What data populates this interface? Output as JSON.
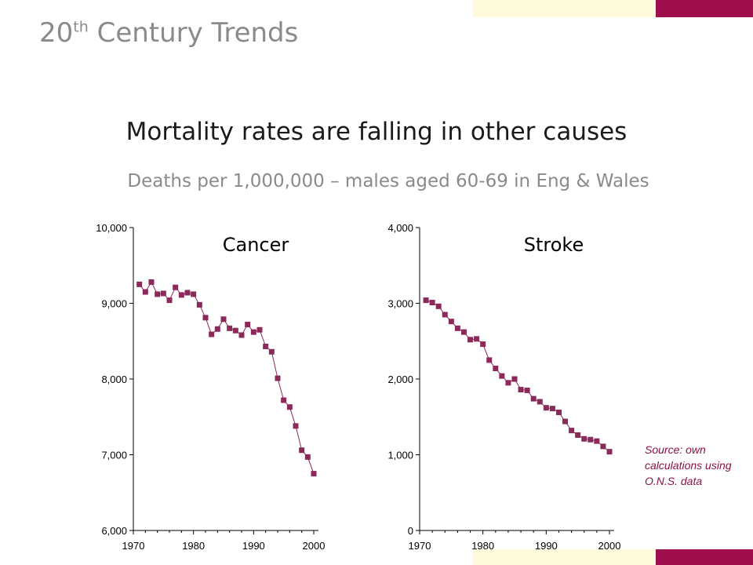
{
  "slide": {
    "title_main": "20",
    "title_sup": "th",
    "title_rest": " Century Trends",
    "headline": "Mortality rates are falling in other causes",
    "subtitle": "Deaths per 1,000,000 – males aged 60-69 in Eng & Wales",
    "source": "Source: own calculations using O.N.S. data"
  },
  "colors": {
    "accent_maroon": "#A00F4D",
    "band_cream": "#FFFADC",
    "marker": "#8B2A5A",
    "title_grey": "#8a8a8a"
  },
  "chart_data": [
    {
      "type": "line",
      "title": "Cancer",
      "x": [
        1971,
        1972,
        1973,
        1974,
        1975,
        1976,
        1977,
        1978,
        1979,
        1980,
        1981,
        1982,
        1983,
        1984,
        1985,
        1986,
        1987,
        1988,
        1989,
        1990,
        1991,
        1992,
        1993,
        1994,
        1995,
        1996,
        1997,
        1998,
        1999,
        2000
      ],
      "values": [
        9250,
        9150,
        9280,
        9120,
        9130,
        9040,
        9210,
        9110,
        9140,
        9120,
        8980,
        8810,
        8590,
        8660,
        8790,
        8670,
        8640,
        8580,
        8720,
        8620,
        8650,
        8430,
        8360,
        8010,
        7720,
        7630,
        7380,
        7060,
        6970,
        6750
      ],
      "xlim": [
        1970,
        2000
      ],
      "xticks": [
        "1970",
        "1980",
        "1990",
        "2000"
      ],
      "ylim": [
        6000,
        10000
      ],
      "yticks": [
        "6,000",
        "7,000",
        "8,000",
        "9,000",
        "10,000"
      ],
      "grid": false,
      "legend": "none"
    },
    {
      "type": "line",
      "title": "Stroke",
      "x": [
        1971,
        1972,
        1973,
        1974,
        1975,
        1976,
        1977,
        1978,
        1979,
        1980,
        1981,
        1982,
        1983,
        1984,
        1985,
        1986,
        1987,
        1988,
        1989,
        1990,
        1991,
        1992,
        1993,
        1994,
        1995,
        1996,
        1997,
        1998,
        1999,
        2000
      ],
      "values": [
        3040,
        3010,
        2960,
        2850,
        2760,
        2670,
        2620,
        2520,
        2530,
        2460,
        2250,
        2140,
        2040,
        1950,
        2000,
        1860,
        1850,
        1740,
        1700,
        1620,
        1610,
        1560,
        1440,
        1320,
        1260,
        1210,
        1200,
        1180,
        1110,
        1040
      ],
      "xlim": [
        1970,
        2000
      ],
      "xticks": [
        "1970",
        "1980",
        "1990",
        "2000"
      ],
      "ylim": [
        0,
        4000
      ],
      "yticks": [
        "0",
        "1,000",
        "2,000",
        "3,000",
        "4,000"
      ],
      "grid": false,
      "legend": "none"
    }
  ]
}
